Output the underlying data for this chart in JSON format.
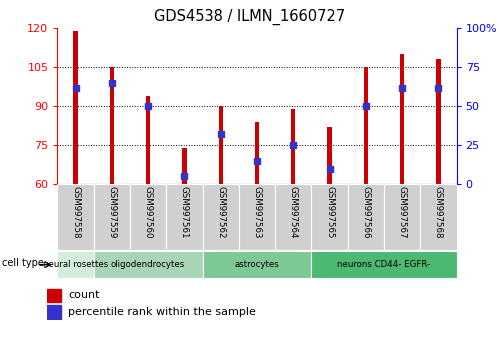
{
  "title": "GDS4538 / ILMN_1660727",
  "samples": [
    "GSM997558",
    "GSM997559",
    "GSM997560",
    "GSM997561",
    "GSM997562",
    "GSM997563",
    "GSM997564",
    "GSM997565",
    "GSM997566",
    "GSM997567",
    "GSM997568"
  ],
  "count_values": [
    119,
    105,
    94,
    74,
    90,
    84,
    89,
    82,
    105,
    110,
    108
  ],
  "percentile_values": [
    62,
    65,
    50,
    5,
    32,
    15,
    25,
    10,
    50,
    62,
    62
  ],
  "ylim_left": [
    60,
    120
  ],
  "ylim_right": [
    0,
    100
  ],
  "yticks_left": [
    60,
    75,
    90,
    105,
    120
  ],
  "yticks_right": [
    0,
    25,
    50,
    75,
    100
  ],
  "bar_color": "#cc0000",
  "marker_color": "#3333cc",
  "cell_types": [
    {
      "label": "neural rosettes",
      "start": 0,
      "end": 1,
      "color": "#d4edda"
    },
    {
      "label": "oligodendrocytes",
      "start": 1,
      "end": 4,
      "color": "#a8d5b5"
    },
    {
      "label": "astrocytes",
      "start": 4,
      "end": 7,
      "color": "#7ec896"
    },
    {
      "label": "neurons CD44- EGFR-",
      "start": 7,
      "end": 11,
      "color": "#4db870"
    }
  ],
  "bar_width": 0.12,
  "legend_count_label": "count",
  "legend_percentile_label": "percentile rank within the sample",
  "cell_type_label": "cell type"
}
